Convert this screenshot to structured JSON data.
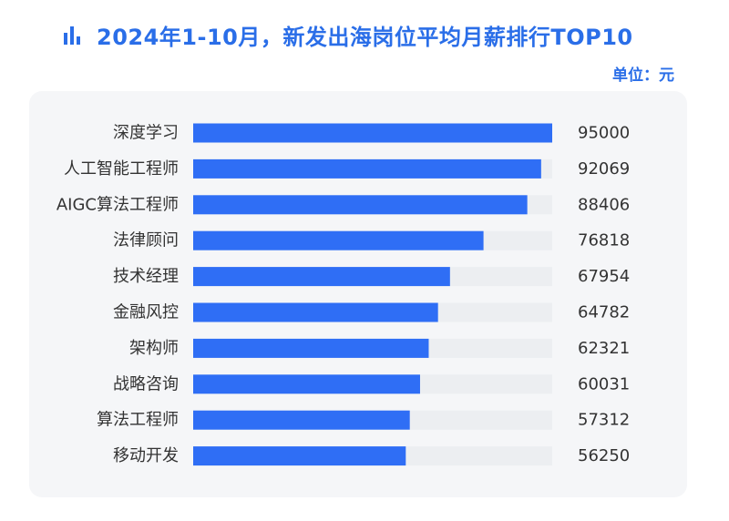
{
  "header": {
    "title": "2024年1-10月，新发出海岗位平均月薪排行TOP10",
    "unit_label": "单位：元",
    "icon": "bar-chart-icon",
    "accent_color": "#2a6ee8"
  },
  "chart_data": {
    "type": "bar",
    "orientation": "horizontal",
    "title": "2024年1-10月，新发出海岗位平均月薪排行TOP10",
    "unit": "单位：元",
    "categories": [
      "深度学习",
      "人工智能工程师",
      "AIGC算法工程师",
      "法律顾问",
      "技术经理",
      "金融风控",
      "架构师",
      "战略咨询",
      "算法工程师",
      "移动开发"
    ],
    "values": [
      95000,
      92069,
      88406,
      76818,
      67954,
      64782,
      62321,
      60031,
      57312,
      56250
    ],
    "xlim": [
      0,
      95000
    ],
    "grid": false,
    "bar_color": "#2f6ef5",
    "track_color": "#eceef1"
  }
}
